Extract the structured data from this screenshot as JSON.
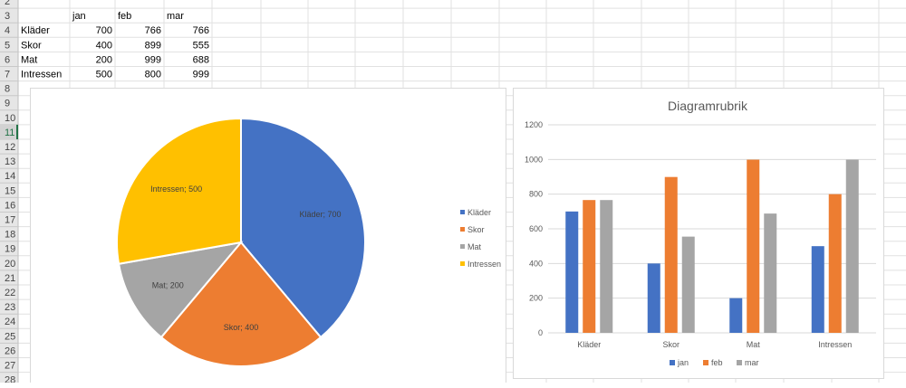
{
  "row_headers": [
    "2",
    "3",
    "4",
    "5",
    "6",
    "7",
    "8",
    "9",
    "10",
    "11",
    "12",
    "13",
    "14",
    "15",
    "16",
    "17",
    "18",
    "19",
    "20",
    "21",
    "22",
    "23",
    "24",
    "25",
    "26",
    "27",
    "28"
  ],
  "table": {
    "columns": [
      "jan",
      "feb",
      "mar"
    ],
    "rows": [
      {
        "label": "Kläder",
        "values": [
          "700",
          "766",
          "766"
        ]
      },
      {
        "label": "Skor",
        "values": [
          "400",
          "899",
          "555"
        ]
      },
      {
        "label": "Mat",
        "values": [
          "200",
          "999",
          "688"
        ]
      },
      {
        "label": "Intressen",
        "values": [
          "500",
          "800",
          "999"
        ]
      }
    ]
  },
  "colors": {
    "jan": "#4472c4",
    "feb": "#ed7d31",
    "mar": "#a5a5a5",
    "intressen": "#ffc000",
    "grid": "#d9d9d9",
    "axis_text": "#595959"
  },
  "chart_data": [
    {
      "type": "pie",
      "labels": [
        "Kläder",
        "Skor",
        "Mat",
        "Intressen"
      ],
      "values": [
        700,
        400,
        200,
        500
      ],
      "data_labels": [
        "Kläder; 700",
        "Skor; 400",
        "Mat; 200",
        "Intressen; 500"
      ],
      "colors": [
        "#4472c4",
        "#ed7d31",
        "#a5a5a5",
        "#ffc000"
      ],
      "legend": [
        "Kläder",
        "Skor",
        "Mat",
        "Intressen"
      ],
      "legend_placement": "right"
    },
    {
      "type": "bar",
      "title": "Diagramrubrik",
      "categories": [
        "Kläder",
        "Skor",
        "Mat",
        "Intressen"
      ],
      "series": [
        {
          "name": "jan",
          "values": [
            700,
            400,
            200,
            500
          ],
          "color": "#4472c4"
        },
        {
          "name": "feb",
          "values": [
            766,
            899,
            999,
            800
          ],
          "color": "#ed7d31"
        },
        {
          "name": "mar",
          "values": [
            766,
            555,
            688,
            999
          ],
          "color": "#a5a5a5"
        }
      ],
      "ylim": [
        0,
        1200
      ],
      "yticks": [
        "0",
        "200",
        "400",
        "600",
        "800",
        "1000",
        "1200"
      ],
      "grid": true,
      "legend_placement": "bottom"
    }
  ]
}
